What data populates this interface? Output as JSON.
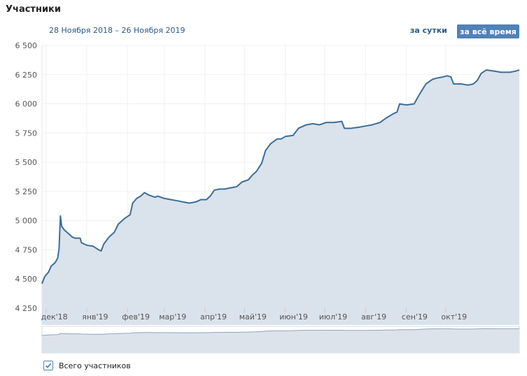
{
  "header": {
    "title": "Участники",
    "date_range": "28 Ноября 2018 – 26 Ноября 2019",
    "btn_day": "за сутки",
    "btn_all": "за всё время"
  },
  "legend": {
    "label": "Всего участников",
    "checked": true
  },
  "colors": {
    "line": "#3b6e9a",
    "area": "#dae2eb",
    "navigator_area": "#dde3ea",
    "accent": "#5181b8",
    "text": "#2a5885"
  },
  "chart_data": {
    "type": "area",
    "title": "",
    "xlabel": "",
    "ylabel": "",
    "ylim": [
      4250,
      6500
    ],
    "yticks": [
      {
        "v": 4250,
        "label": "4 250"
      },
      {
        "v": 4500,
        "label": "4 500"
      },
      {
        "v": 4750,
        "label": "4 750"
      },
      {
        "v": 5000,
        "label": "5 000"
      },
      {
        "v": 5250,
        "label": "5 250"
      },
      {
        "v": 5500,
        "label": "5 500"
      },
      {
        "v": 5750,
        "label": "5 750"
      },
      {
        "v": 6000,
        "label": "6 000"
      },
      {
        "v": 6250,
        "label": "6 250"
      },
      {
        "v": 6500,
        "label": "6 500"
      }
    ],
    "xlim": [
      "2018-11-28",
      "2019-11-26"
    ],
    "xticks": [
      {
        "date": "2018-12-01",
        "label": "дек'18"
      },
      {
        "date": "2019-01-01",
        "label": "янв'19"
      },
      {
        "date": "2019-02-01",
        "label": "фев'19"
      },
      {
        "date": "2019-03-01",
        "label": "мар'19"
      },
      {
        "date": "2019-04-01",
        "label": "апр'19"
      },
      {
        "date": "2019-05-01",
        "label": "май'19"
      },
      {
        "date": "2019-06-01",
        "label": "июн'19"
      },
      {
        "date": "2019-07-01",
        "label": "июл'19"
      },
      {
        "date": "2019-08-01",
        "label": "авг'19"
      },
      {
        "date": "2019-09-01",
        "label": "сен'19"
      },
      {
        "date": "2019-10-01",
        "label": "окт'19"
      }
    ],
    "grid": true,
    "series": [
      {
        "name": "Всего участников",
        "points": [
          [
            "2018-11-28",
            4460
          ],
          [
            "2018-11-30",
            4520
          ],
          [
            "2018-12-03",
            4560
          ],
          [
            "2018-12-05",
            4610
          ],
          [
            "2018-12-08",
            4640
          ],
          [
            "2018-12-10",
            4680
          ],
          [
            "2018-12-11",
            4760
          ],
          [
            "2018-12-12",
            5040
          ],
          [
            "2018-12-13",
            4950
          ],
          [
            "2018-12-15",
            4920
          ],
          [
            "2018-12-18",
            4890
          ],
          [
            "2018-12-21",
            4860
          ],
          [
            "2018-12-23",
            4850
          ],
          [
            "2018-12-27",
            4850
          ],
          [
            "2018-12-28",
            4810
          ],
          [
            "2019-01-01",
            4790
          ],
          [
            "2019-01-06",
            4780
          ],
          [
            "2019-01-10",
            4750
          ],
          [
            "2019-01-12",
            4740
          ],
          [
            "2019-01-14",
            4800
          ],
          [
            "2019-01-18",
            4860
          ],
          [
            "2019-01-22",
            4900
          ],
          [
            "2019-01-25",
            4970
          ],
          [
            "2019-01-30",
            5020
          ],
          [
            "2019-02-03",
            5050
          ],
          [
            "2019-02-05",
            5150
          ],
          [
            "2019-02-08",
            5190
          ],
          [
            "2019-02-11",
            5210
          ],
          [
            "2019-02-14",
            5240
          ],
          [
            "2019-02-17",
            5220
          ],
          [
            "2019-02-22",
            5200
          ],
          [
            "2019-02-24",
            5210
          ],
          [
            "2019-03-01",
            5190
          ],
          [
            "2019-03-06",
            5180
          ],
          [
            "2019-03-11",
            5170
          ],
          [
            "2019-03-15",
            5160
          ],
          [
            "2019-03-20",
            5150
          ],
          [
            "2019-03-25",
            5160
          ],
          [
            "2019-03-29",
            5180
          ],
          [
            "2019-04-02",
            5180
          ],
          [
            "2019-04-05",
            5210
          ],
          [
            "2019-04-08",
            5260
          ],
          [
            "2019-04-12",
            5270
          ],
          [
            "2019-04-16",
            5270
          ],
          [
            "2019-04-20",
            5280
          ],
          [
            "2019-04-25",
            5290
          ],
          [
            "2019-04-29",
            5330
          ],
          [
            "2019-05-04",
            5350
          ],
          [
            "2019-05-07",
            5390
          ],
          [
            "2019-05-10",
            5420
          ],
          [
            "2019-05-14",
            5490
          ],
          [
            "2019-05-17",
            5600
          ],
          [
            "2019-05-21",
            5660
          ],
          [
            "2019-05-26",
            5700
          ],
          [
            "2019-05-29",
            5700
          ],
          [
            "2019-06-01",
            5720
          ],
          [
            "2019-06-07",
            5730
          ],
          [
            "2019-06-11",
            5790
          ],
          [
            "2019-06-17",
            5820
          ],
          [
            "2019-06-22",
            5830
          ],
          [
            "2019-06-27",
            5820
          ],
          [
            "2019-07-02",
            5840
          ],
          [
            "2019-07-08",
            5840
          ],
          [
            "2019-07-14",
            5850
          ],
          [
            "2019-07-16",
            5790
          ],
          [
            "2019-07-21",
            5790
          ],
          [
            "2019-07-27",
            5800
          ],
          [
            "2019-08-01",
            5810
          ],
          [
            "2019-08-06",
            5820
          ],
          [
            "2019-08-12",
            5840
          ],
          [
            "2019-08-17",
            5880
          ],
          [
            "2019-08-23",
            5920
          ],
          [
            "2019-08-25",
            5930
          ],
          [
            "2019-08-27",
            6000
          ],
          [
            "2019-09-01",
            5990
          ],
          [
            "2019-09-07",
            6000
          ],
          [
            "2019-09-11",
            6080
          ],
          [
            "2019-09-16",
            6170
          ],
          [
            "2019-09-21",
            6210
          ],
          [
            "2019-09-24",
            6220
          ],
          [
            "2019-09-29",
            6230
          ],
          [
            "2019-10-02",
            6240
          ],
          [
            "2019-10-05",
            6230
          ],
          [
            "2019-10-07",
            6170
          ],
          [
            "2019-10-13",
            6170
          ],
          [
            "2019-10-18",
            6160
          ],
          [
            "2019-10-22",
            6170
          ],
          [
            "2019-10-25",
            6200
          ],
          [
            "2019-10-28",
            6260
          ],
          [
            "2019-11-01",
            6290
          ],
          [
            "2019-11-07",
            6280
          ],
          [
            "2019-11-12",
            6270
          ],
          [
            "2019-11-19",
            6270
          ],
          [
            "2019-11-23",
            6280
          ],
          [
            "2019-11-26",
            6290
          ]
        ]
      }
    ]
  }
}
